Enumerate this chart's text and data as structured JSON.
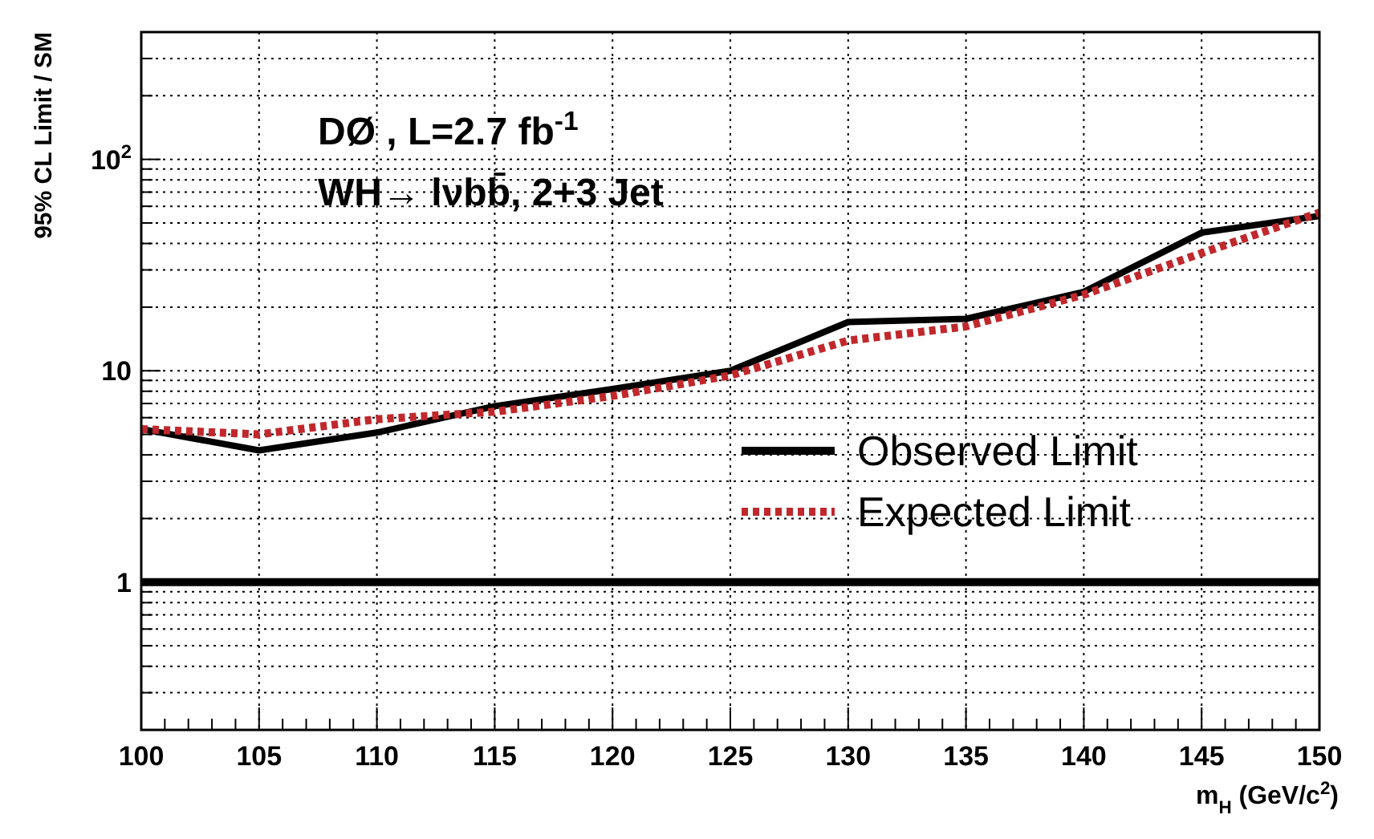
{
  "chart_data": {
    "type": "line",
    "xlabel": "m$_{H}$ (GeV/c$^{2}$)",
    "ylabel": "95% CL  Limit / SM",
    "annotations": [
      "DØ , L=2.7 fb$^{-1}$",
      "WH→ lνbb̄, 2+3 Jet"
    ],
    "x": [
      100,
      105,
      110,
      115,
      120,
      125,
      130,
      135,
      140,
      145,
      150
    ],
    "series": [
      {
        "name": "Observed Limit",
        "color": "#000000",
        "line_style": "solid",
        "values": [
          5.3,
          4.2,
          5.1,
          6.8,
          8.2,
          10,
          17,
          17.6,
          23.6,
          45,
          54
        ]
      },
      {
        "name": "Expected Limit",
        "color": "#c0282c",
        "line_style": "dotted",
        "values": [
          5.3,
          5.0,
          5.9,
          6.4,
          7.6,
          9.5,
          13.9,
          16.2,
          22.9,
          36,
          56
        ]
      }
    ],
    "xlim": [
      100,
      150
    ],
    "xticks": [
      100,
      {
        "value": 101,
        "label": null
      },
      {
        "value": 102,
        "label": null
      },
      {
        "value": 103,
        "label": null
      },
      {
        "value": 104,
        "label": null
      },
      105,
      {
        "value": 106,
        "label": null
      },
      {
        "value": 107,
        "label": null
      },
      {
        "value": 108,
        "label": null
      },
      {
        "value": 109,
        "label": null
      },
      110,
      {
        "value": 111,
        "label": null
      },
      {
        "value": 112,
        "label": null
      },
      {
        "value": 113,
        "label": null
      },
      {
        "value": 114,
        "label": null
      },
      115,
      {
        "value": 116,
        "label": null
      },
      {
        "value": 117,
        "label": null
      },
      {
        "value": 118,
        "label": null
      },
      {
        "value": 119,
        "label": null
      },
      120,
      {
        "value": 121,
        "label": null
      },
      {
        "value": 122,
        "label": null
      },
      {
        "value": 123,
        "label": null
      },
      {
        "value": 124,
        "label": null
      },
      125,
      {
        "value": 126,
        "label": null
      },
      {
        "value": 127,
        "label": null
      },
      {
        "value": 128,
        "label": null
      },
      {
        "value": 129,
        "label": null
      },
      130,
      {
        "value": 131,
        "label": null
      },
      {
        "value": 132,
        "label": null
      },
      {
        "value": 133,
        "label": null
      },
      {
        "value": 134,
        "label": null
      },
      135,
      {
        "value": 136,
        "label": null
      },
      {
        "value": 137,
        "label": null
      },
      {
        "value": 138,
        "label": null
      },
      {
        "value": 139,
        "label": null
      },
      140,
      {
        "value": 141,
        "label": null
      },
      {
        "value": 142,
        "label": null
      },
      {
        "value": 143,
        "label": null
      },
      {
        "value": 144,
        "label": null
      },
      145,
      {
        "value": 146,
        "label": null
      },
      {
        "value": 147,
        "label": null
      },
      {
        "value": 148,
        "label": null
      },
      {
        "value": 149,
        "label": null
      },
      150
    ],
    "ylim": [
      0.2,
      400
    ],
    "log": true,
    "yticks": [
      {
        "value": 0.2,
        "label": null
      },
      {
        "value": 0.3,
        "label": null
      },
      {
        "value": 0.4,
        "label": null
      },
      {
        "value": 0.5,
        "label": null
      },
      {
        "value": 0.6,
        "label": null
      },
      {
        "value": 0.7,
        "label": null
      },
      {
        "value": 0.8,
        "label": null
      },
      {
        "value": 0.9,
        "label": null
      },
      1,
      {
        "value": 2,
        "label": null
      },
      {
        "value": 3,
        "label": null
      },
      {
        "value": 4,
        "label": null
      },
      {
        "value": 5,
        "label": null
      },
      {
        "value": 6,
        "label": null
      },
      {
        "value": 7,
        "label": null
      },
      {
        "value": 8,
        "label": null
      },
      {
        "value": 9,
        "label": null
      },
      10,
      {
        "value": 20,
        "label": null
      },
      {
        "value": 30,
        "label": null
      },
      {
        "value": 40,
        "label": null
      },
      {
        "value": 50,
        "label": null
      },
      {
        "value": 60,
        "label": null
      },
      {
        "value": 70,
        "label": null
      },
      {
        "value": 80,
        "label": null
      },
      {
        "value": 90,
        "label": null
      },
      {
        "value": 100,
        "label": "10$^{2}$"
      },
      {
        "value": 200,
        "label": null
      },
      {
        "value": 300,
        "label": null
      },
      {
        "value": 400,
        "label": null
      }
    ],
    "ref_lines": [
      {
        "axis": "y",
        "value": 1,
        "color": "#000000",
        "line_style": "solid"
      }
    ],
    "grid": true,
    "legend": "right"
  }
}
